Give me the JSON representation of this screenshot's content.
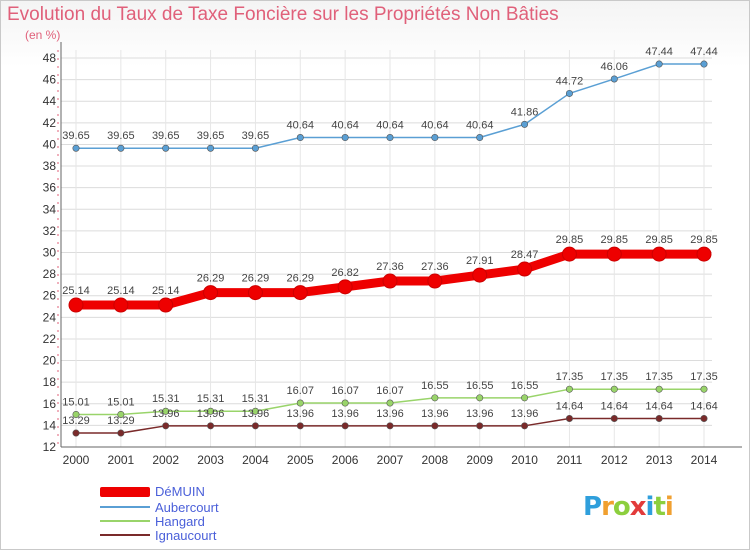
{
  "header": {
    "title": "Evolution du Taux de Taxe Foncière sur les Propriétés Non Bâties",
    "unit": "(en %)"
  },
  "brand": {
    "letters": [
      "P",
      "r",
      "o",
      "x",
      "i",
      "t",
      "i"
    ],
    "colors": [
      "#2f9fdc",
      "#f0a030",
      "#8ccf3e",
      "#e23b3b",
      "#2f9fdc",
      "#8ccf3e",
      "#f0a030"
    ]
  },
  "chart_data": {
    "type": "line",
    "x": [
      2000,
      2001,
      2002,
      2003,
      2004,
      2005,
      2006,
      2007,
      2008,
      2009,
      2010,
      2011,
      2012,
      2013,
      2014
    ],
    "ylim": [
      12,
      48
    ],
    "yticks": [
      12,
      14,
      16,
      18,
      20,
      22,
      24,
      26,
      28,
      30,
      32,
      34,
      36,
      38,
      40,
      42,
      44,
      46,
      48
    ],
    "grid": true,
    "legend_position": "bottom-left",
    "series": [
      {
        "name": "Aubercourt",
        "color": "#5a9fd4",
        "labels": true,
        "label_pos": "above",
        "values": [
          39.65,
          39.65,
          39.65,
          39.65,
          39.65,
          40.64,
          40.64,
          40.64,
          40.64,
          40.64,
          41.86,
          44.72,
          46.06,
          47.44,
          47.44
        ],
        "value_labels": [
          "39.65",
          "39.65",
          "39.65",
          "39.65",
          "39.65",
          "40.64",
          "40.64",
          "40.64",
          "40.64",
          "40.64",
          "41.86",
          "44.72",
          "46.06",
          "47.44",
          "47.44"
        ]
      },
      {
        "name": "DéMUIN",
        "color": "#ee0000",
        "labels": true,
        "label_pos": "above",
        "values": [
          25.14,
          25.14,
          25.14,
          26.29,
          26.29,
          26.29,
          26.82,
          27.36,
          27.36,
          27.91,
          28.47,
          29.85,
          29.85,
          29.85,
          29.85
        ],
        "value_labels": [
          "25.14",
          "25.14",
          "25.14",
          "26.29",
          "26.29",
          "26.29",
          "26.82",
          "27.36",
          "27.36",
          "27.91",
          "28.47",
          "29.85",
          "29.85",
          "29.85",
          "29.85"
        ]
      },
      {
        "name": "Hangard",
        "color": "#99d46a",
        "labels": true,
        "label_pos": "above",
        "values": [
          15.01,
          15.01,
          15.31,
          15.31,
          15.31,
          16.07,
          16.07,
          16.07,
          16.55,
          16.55,
          16.55,
          17.35,
          17.35,
          17.35,
          17.35
        ],
        "value_labels": [
          "15.01",
          "15.01",
          "15.31",
          "15.31",
          "15.31",
          "16.07",
          "16.07",
          "16.07",
          "16.55",
          "16.55",
          "16.55",
          "17.35",
          "17.35",
          "17.35",
          "17.35"
        ]
      },
      {
        "name": "Ignaucourt",
        "color": "#7a2a2a",
        "labels": true,
        "label_pos": "above",
        "values": [
          13.29,
          13.29,
          13.96,
          13.96,
          13.96,
          13.96,
          13.96,
          13.96,
          13.96,
          13.96,
          13.96,
          14.64,
          14.64,
          14.64,
          14.64
        ],
        "value_labels": [
          "13.29",
          "13.29",
          "13.96",
          "13.96",
          "13.96",
          "13.96",
          "13.96",
          "13.96",
          "13.96",
          "13.96",
          "13.96",
          "14.64",
          "14.64",
          "14.64",
          "14.64"
        ]
      }
    ]
  }
}
